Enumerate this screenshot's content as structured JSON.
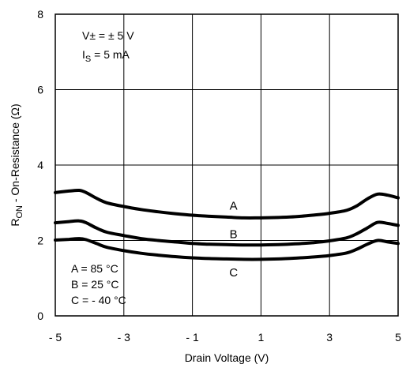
{
  "chart_data": {
    "type": "line",
    "xlabel": "Drain Voltage (V)",
    "ylabel_main": "R",
    "ylabel_sub": "ON",
    "ylabel_rest": "  - On-Resistance (Ω)",
    "xlim": [
      -5,
      5
    ],
    "ylim": [
      0,
      8
    ],
    "xticks": [
      -5,
      -3,
      -1,
      1,
      3,
      5
    ],
    "xtick_labels": [
      "- 5",
      "- 3",
      "- 1",
      "1",
      "3",
      "5"
    ],
    "yticks": [
      0,
      2,
      4,
      6,
      8
    ],
    "ytick_labels": [
      "0",
      "2",
      "4",
      "6",
      "8"
    ],
    "grid": true,
    "conditions": {
      "line1": "V± = ± 5 V",
      "line2_main": "I",
      "line2_sub": "S",
      "line2_rest": " = 5 mA"
    },
    "legend_text": [
      "A = 85 °C",
      "B = 25 °C",
      "C = - 40 °C"
    ],
    "series": [
      {
        "name": "A",
        "x": [
          -5,
          -4.6,
          -4.3,
          -4.1,
          -3.8,
          -3.5,
          -3,
          -2.5,
          -2,
          -1.5,
          -1,
          -0.5,
          0,
          0.5,
          1,
          1.5,
          2,
          2.5,
          3,
          3.5,
          3.8,
          4.1,
          4.4,
          4.7,
          5
        ],
        "y": [
          3.27,
          3.31,
          3.33,
          3.27,
          3.12,
          3.0,
          2.9,
          2.82,
          2.76,
          2.71,
          2.67,
          2.64,
          2.62,
          2.6,
          2.6,
          2.61,
          2.63,
          2.67,
          2.72,
          2.8,
          2.92,
          3.1,
          3.23,
          3.2,
          3.13
        ]
      },
      {
        "name": "B",
        "x": [
          -5,
          -4.6,
          -4.3,
          -4.1,
          -3.8,
          -3.5,
          -3,
          -2.5,
          -2,
          -1.5,
          -1,
          -0.5,
          0,
          0.5,
          1,
          1.5,
          2,
          2.5,
          3,
          3.5,
          3.8,
          4.1,
          4.4,
          4.7,
          5
        ],
        "y": [
          2.47,
          2.5,
          2.52,
          2.47,
          2.33,
          2.22,
          2.13,
          2.05,
          2.0,
          1.96,
          1.92,
          1.9,
          1.89,
          1.88,
          1.88,
          1.89,
          1.91,
          1.94,
          1.99,
          2.07,
          2.18,
          2.33,
          2.48,
          2.45,
          2.4
        ]
      },
      {
        "name": "C",
        "x": [
          -5,
          -4.6,
          -4.3,
          -4.1,
          -3.8,
          -3.5,
          -3,
          -2.5,
          -2,
          -1.5,
          -1,
          -0.5,
          0,
          0.5,
          1,
          1.5,
          2,
          2.5,
          3,
          3.5,
          3.8,
          4.1,
          4.4,
          4.7,
          5
        ],
        "y": [
          2.01,
          2.03,
          2.05,
          2.02,
          1.92,
          1.82,
          1.73,
          1.66,
          1.61,
          1.57,
          1.54,
          1.52,
          1.51,
          1.5,
          1.5,
          1.51,
          1.53,
          1.56,
          1.6,
          1.67,
          1.77,
          1.9,
          2.0,
          1.96,
          1.92
        ]
      }
    ],
    "curve_labels": [
      {
        "text": "A",
        "x": 0.2,
        "y": 2.92
      },
      {
        "text": "B",
        "x": 0.2,
        "y": 2.17
      },
      {
        "text": "C",
        "x": 0.2,
        "y": 1.15
      }
    ]
  }
}
